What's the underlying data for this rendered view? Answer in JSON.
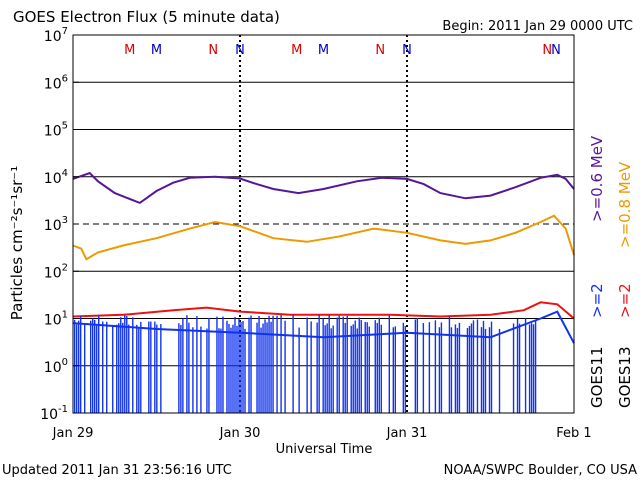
{
  "chart_data": {
    "type": "line",
    "title": "GOES Electron Flux (5 minute data)",
    "begin_label": "Begin: 2011 Jan 29 0000 UTC",
    "ylabel": "Particles cm⁻²s⁻¹sr⁻¹",
    "xlabel": "Universal Time",
    "y_scale": "log",
    "ylim": [
      0.1,
      10000000
    ],
    "y_ticks": [
      {
        "base": "10",
        "exp": "7"
      },
      {
        "base": "10",
        "exp": "6"
      },
      {
        "base": "10",
        "exp": "5"
      },
      {
        "base": "10",
        "exp": "4"
      },
      {
        "base": "10",
        "exp": "3"
      },
      {
        "base": "10",
        "exp": "2"
      },
      {
        "base": "10",
        "exp": "1"
      },
      {
        "base": "10",
        "exp": "0"
      },
      {
        "base": "10",
        "exp": "-1"
      }
    ],
    "x_ticks": [
      "Jan 29",
      "Jan 30",
      "Jan 31",
      "Feb 1"
    ],
    "xlim_days": [
      0,
      3
    ],
    "markers": [
      {
        "label": "M",
        "day": 0.34,
        "color": "#dd0000"
      },
      {
        "label": "M",
        "day": 0.5,
        "color": "#0000cc"
      },
      {
        "label": "N",
        "day": 0.84,
        "color": "#dd0000"
      },
      {
        "label": "N",
        "day": 1.0,
        "color": "#0000cc"
      },
      {
        "label": "M",
        "day": 1.34,
        "color": "#dd0000"
      },
      {
        "label": "M",
        "day": 1.5,
        "color": "#0000cc"
      },
      {
        "label": "N",
        "day": 1.84,
        "color": "#dd0000"
      },
      {
        "label": "N",
        "day": 2.0,
        "color": "#0000cc"
      },
      {
        "label": "N",
        "day": 2.84,
        "color": "#dd0000"
      },
      {
        "label": "N",
        "day": 3.0,
        "color": "#0000cc"
      }
    ],
    "legend": {
      "goes11": {
        "name": "GOES11",
        "entries": [
          {
            "label": ">=0.6 MeV",
            "color": "#55169a"
          },
          {
            "label": ">=2",
            "color": "#1133ee"
          }
        ]
      },
      "goes13": {
        "name": "GOES13",
        "entries": [
          {
            "label": ">=0.8 MeV",
            "color": "#ee9900"
          },
          {
            "label": ">=2",
            "color": "#ee1111"
          }
        ]
      }
    },
    "series": [
      {
        "name": "GOES11 >=0.6 MeV",
        "color": "#55169a",
        "x": [
          0,
          0.1,
          0.15,
          0.25,
          0.4,
          0.5,
          0.6,
          0.7,
          0.85,
          1.0,
          1.1,
          1.2,
          1.35,
          1.5,
          1.7,
          1.85,
          2.0,
          2.1,
          2.2,
          2.35,
          2.5,
          2.65,
          2.8,
          2.9,
          2.95,
          3.0
        ],
        "y": [
          9000,
          12000,
          8000,
          4500,
          2800,
          5000,
          7500,
          9500,
          10000,
          9200,
          7000,
          5500,
          4500,
          5500,
          8000,
          9500,
          9000,
          7000,
          4500,
          3500,
          4000,
          6000,
          9500,
          11000,
          9000,
          5500
        ]
      },
      {
        "name": "GOES13 >=0.8 MeV",
        "color": "#ee9900",
        "x": [
          0,
          0.05,
          0.08,
          0.15,
          0.3,
          0.5,
          0.7,
          0.85,
          1.0,
          1.2,
          1.4,
          1.6,
          1.8,
          2.0,
          2.2,
          2.35,
          2.5,
          2.65,
          2.8,
          2.88,
          2.95,
          3.0
        ],
        "y": [
          350,
          300,
          180,
          250,
          350,
          500,
          800,
          1100,
          900,
          500,
          420,
          550,
          800,
          650,
          450,
          380,
          450,
          650,
          1100,
          1500,
          800,
          220
        ]
      },
      {
        "name": "GOES13 >=2",
        "color": "#ee1111",
        "x": [
          0,
          0.3,
          0.6,
          0.8,
          1.0,
          1.3,
          1.6,
          1.9,
          2.2,
          2.5,
          2.7,
          2.8,
          2.9,
          3.0
        ],
        "y": [
          11,
          12,
          15,
          17,
          14,
          12,
          12,
          12,
          11,
          12,
          15,
          22,
          20,
          10
        ]
      },
      {
        "name": "GOES11 >=2",
        "color": "#1133ee",
        "x": [
          0,
          0.5,
          1.0,
          1.5,
          2.0,
          2.5,
          2.8,
          2.9,
          3.0
        ],
        "y": [
          8,
          6,
          5,
          4,
          5,
          4,
          10,
          14,
          3
        ]
      }
    ]
  },
  "footer": {
    "updated": "Updated 2011 Jan 31 23:56:16 UTC",
    "credit": "NOAA/SWPC Boulder, CO USA"
  }
}
